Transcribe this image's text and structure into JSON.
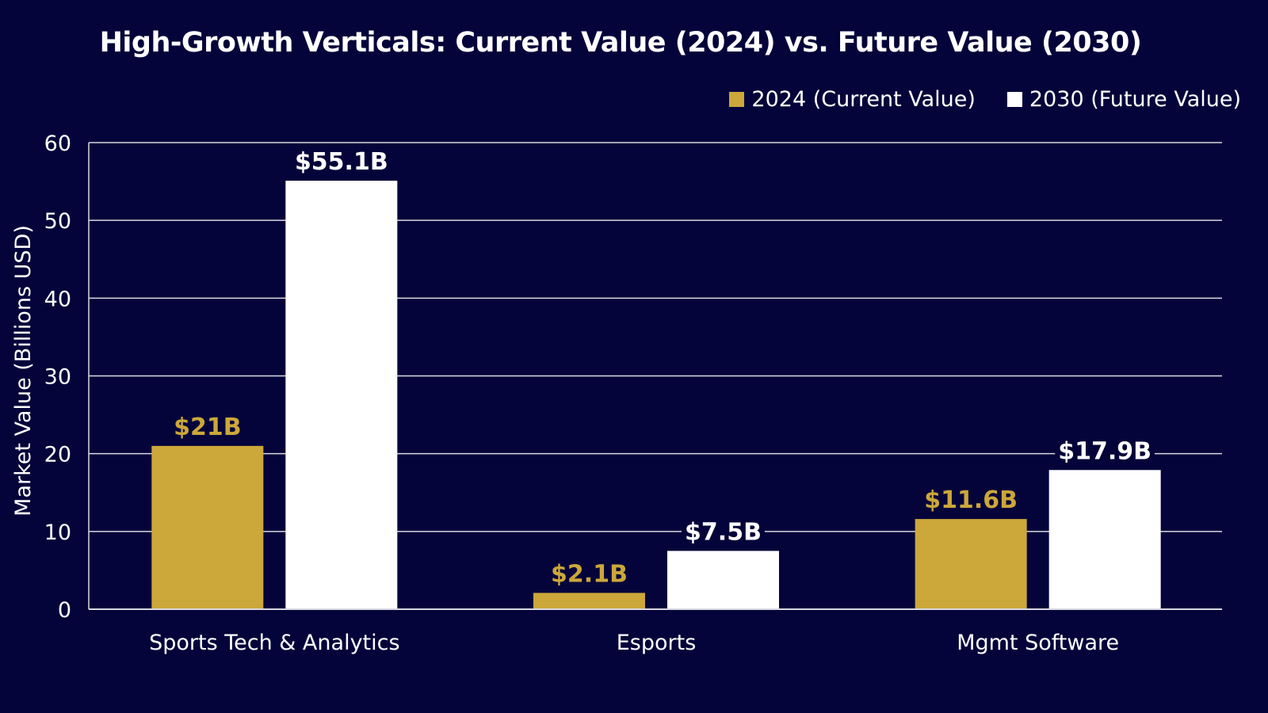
{
  "chart_data": {
    "type": "bar",
    "title": "High-Growth Verticals: Current Value (2024) vs. Future Value (2030)",
    "xlabel": "",
    "ylabel": "Market Value (Billions USD)",
    "ylim": [
      0,
      60
    ],
    "yticks": [
      0,
      10,
      20,
      30,
      40,
      50,
      60
    ],
    "grid": true,
    "legend_position": "top-right",
    "categories": [
      "Sports Tech & Analytics",
      "Esports",
      "Mgmt Software"
    ],
    "series": [
      {
        "name": "2024 (Current Value)",
        "color": "#cca73a",
        "values": [
          21,
          2.1,
          11.6
        ],
        "labels": [
          "$21B",
          "$2.1B",
          "$11.6B"
        ]
      },
      {
        "name": "2030 (Future Value)",
        "color": "#ffffff",
        "values": [
          55.1,
          7.5,
          17.9
        ],
        "labels": [
          "$55.1B",
          "$7.5B",
          "$17.9B"
        ]
      }
    ]
  },
  "colors": {
    "background": "#04043a",
    "gridline": "#d8d8e0",
    "text": "#ffffff"
  }
}
